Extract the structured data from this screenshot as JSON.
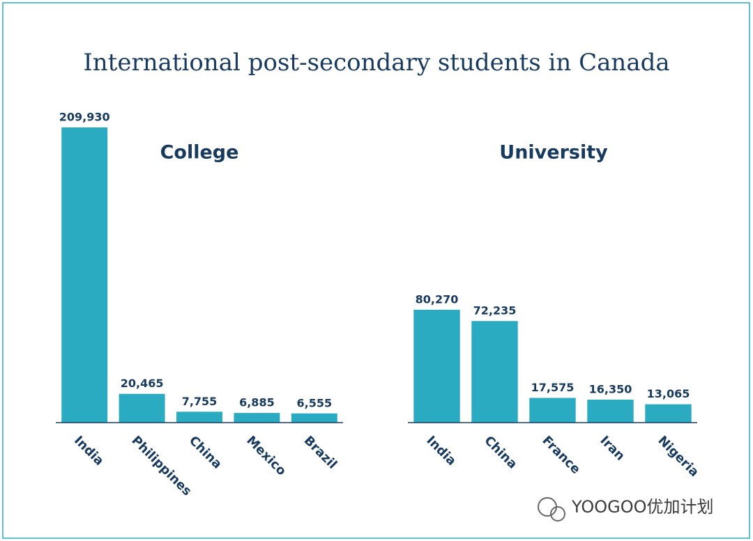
{
  "title": "International post-secondary students in Canada",
  "watermark": "YOOGOO优加计划",
  "chart_data": [
    {
      "type": "bar",
      "title": "College",
      "color": "#2aabc2",
      "categories": [
        "India",
        "Philippines",
        "China",
        "Mexico",
        "Brazil"
      ],
      "values": [
        209930,
        20465,
        7755,
        6885,
        6555
      ],
      "value_labels": [
        "209,930",
        "20,465",
        "7,755",
        "6,885",
        "6,555"
      ]
    },
    {
      "type": "bar",
      "title": "University",
      "color": "#2aabc2",
      "categories": [
        "India",
        "China",
        "France",
        "Iran",
        "Nigeria"
      ],
      "values": [
        80270,
        72235,
        17575,
        16350,
        13065
      ],
      "value_labels": [
        "80,270",
        "72,235",
        "17,575",
        "16,350",
        "13,065"
      ]
    }
  ]
}
